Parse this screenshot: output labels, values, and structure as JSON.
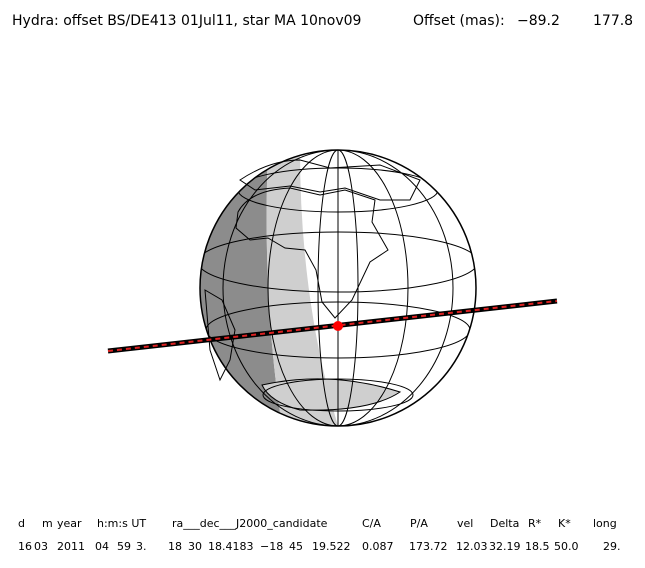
{
  "header": {
    "title": "Hydra: offset BS/DE413 01Jul11, star MA 10nov09",
    "offset_label": "Offset (mas):",
    "offset_values": [
      "−89.2",
      "177.8"
    ]
  },
  "table": {
    "columns": [
      "d",
      "m",
      "year",
      "h:m:s UT",
      "ra___dec___J2000_candidate",
      "C/A",
      "P/A",
      "vel",
      "Delta",
      "R*",
      "K*",
      "long"
    ],
    "row": [
      "16",
      "03",
      "2011",
      "04",
      "59",
      "3.",
      "18",
      "30",
      "18.4183",
      "−18",
      "45",
      "19.522",
      "0.087",
      "173.72",
      "12.03",
      "32.19",
      "18.5",
      "50.0",
      "29."
    ]
  }
}
